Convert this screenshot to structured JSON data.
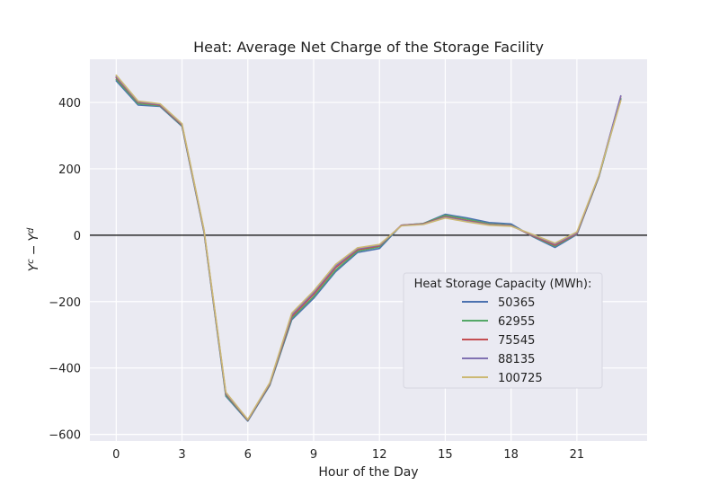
{
  "chart_data": {
    "type": "line",
    "title": "Heat: Average Net Charge of the Storage Facility",
    "xlabel": "Hour of the Day",
    "ylabel": "Y^c − Y^d",
    "ylabel_parts": {
      "base1": "Y",
      "sup1": "c",
      "minus": "−",
      "base2": "Y",
      "sup2": "d"
    },
    "xlim": [
      -1.2,
      24.2
    ],
    "ylim": [
      -620,
      530
    ],
    "xticks": [
      0,
      3,
      6,
      9,
      12,
      15,
      18,
      21
    ],
    "xtick_labels": [
      "0",
      "3",
      "6",
      "9",
      "12",
      "15",
      "18",
      "21"
    ],
    "yticks": [
      -600,
      -400,
      -200,
      0,
      200,
      400
    ],
    "ytick_labels": [
      "−600",
      "−400",
      "−200",
      "0",
      "200",
      "400"
    ],
    "grid": true,
    "zero_line": true,
    "legend": {
      "title": "Heat Storage Capacity (MWh):",
      "placement": "lower-right"
    },
    "x": [
      0,
      1,
      2,
      3,
      4,
      5,
      6,
      7,
      8,
      9,
      10,
      11,
      12,
      13,
      14,
      15,
      16,
      17,
      18,
      19,
      20,
      21,
      22,
      23
    ],
    "series": [
      {
        "name": "50365",
        "color": "#4c72b0",
        "values": [
          465,
          392,
          388,
          328,
          10,
          -485,
          -560,
          -452,
          -255,
          -190,
          -110,
          -52,
          -40,
          30,
          35,
          63,
          52,
          38,
          34,
          -5,
          -37,
          2,
          175,
          410
        ]
      },
      {
        "name": "62955",
        "color": "#55a868",
        "values": [
          470,
          396,
          390,
          330,
          12,
          -482,
          -558,
          -450,
          -250,
          -185,
          -105,
          -48,
          -35,
          30,
          35,
          60,
          48,
          34,
          30,
          -3,
          -33,
          4,
          176,
          412
        ]
      },
      {
        "name": "75545",
        "color": "#c44e52",
        "values": [
          475,
          400,
          392,
          332,
          14,
          -478,
          -557,
          -448,
          -245,
          -178,
          -98,
          -44,
          -32,
          30,
          34,
          56,
          44,
          32,
          29,
          -2,
          -30,
          5,
          178,
          418
        ]
      },
      {
        "name": "88135",
        "color": "#8172b2",
        "values": [
          478,
          402,
          394,
          334,
          16,
          -476,
          -556,
          -446,
          -240,
          -173,
          -93,
          -41,
          -30,
          29,
          33,
          54,
          42,
          31,
          28,
          0,
          -27,
          7,
          179,
          420
        ]
      },
      {
        "name": "100725",
        "color": "#ccb974",
        "values": [
          482,
          404,
          396,
          336,
          18,
          -473,
          -555,
          -444,
          -235,
          -168,
          -88,
          -38,
          -28,
          28,
          32,
          52,
          40,
          30,
          27,
          2,
          -24,
          10,
          181,
          405
        ]
      }
    ]
  }
}
